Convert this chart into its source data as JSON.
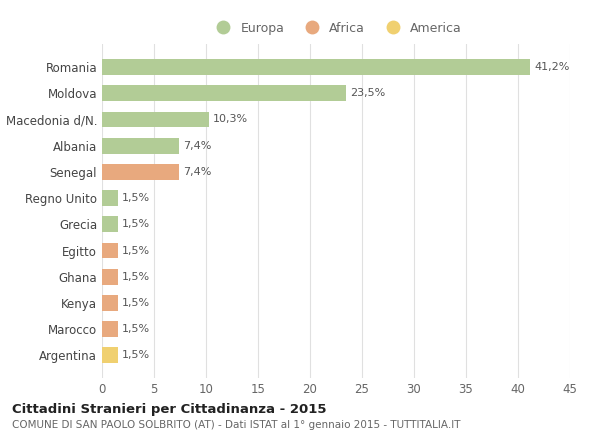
{
  "categories": [
    "Romania",
    "Moldova",
    "Macedonia d/N.",
    "Albania",
    "Senegal",
    "Regno Unito",
    "Grecia",
    "Egitto",
    "Ghana",
    "Kenya",
    "Marocco",
    "Argentina"
  ],
  "values": [
    41.2,
    23.5,
    10.3,
    7.4,
    7.4,
    1.5,
    1.5,
    1.5,
    1.5,
    1.5,
    1.5,
    1.5
  ],
  "labels": [
    "41,2%",
    "23,5%",
    "10,3%",
    "7,4%",
    "7,4%",
    "1,5%",
    "1,5%",
    "1,5%",
    "1,5%",
    "1,5%",
    "1,5%",
    "1,5%"
  ],
  "continents": [
    "Europa",
    "Europa",
    "Europa",
    "Europa",
    "Africa",
    "Europa",
    "Europa",
    "Africa",
    "Africa",
    "Africa",
    "Africa",
    "America"
  ],
  "colors": {
    "Europa": "#b2cc96",
    "Africa": "#e8a97e",
    "America": "#f0d070"
  },
  "legend_entries": [
    "Europa",
    "Africa",
    "America"
  ],
  "title": "Cittadini Stranieri per Cittadinanza - 2015",
  "subtitle": "COMUNE DI SAN PAOLO SOLBRITO (AT) - Dati ISTAT al 1° gennaio 2015 - TUTTITALIA.IT",
  "xlim": [
    0,
    45
  ],
  "xticks": [
    0,
    5,
    10,
    15,
    20,
    25,
    30,
    35,
    40,
    45
  ],
  "background_color": "#ffffff",
  "grid_color": "#e0e0e0"
}
